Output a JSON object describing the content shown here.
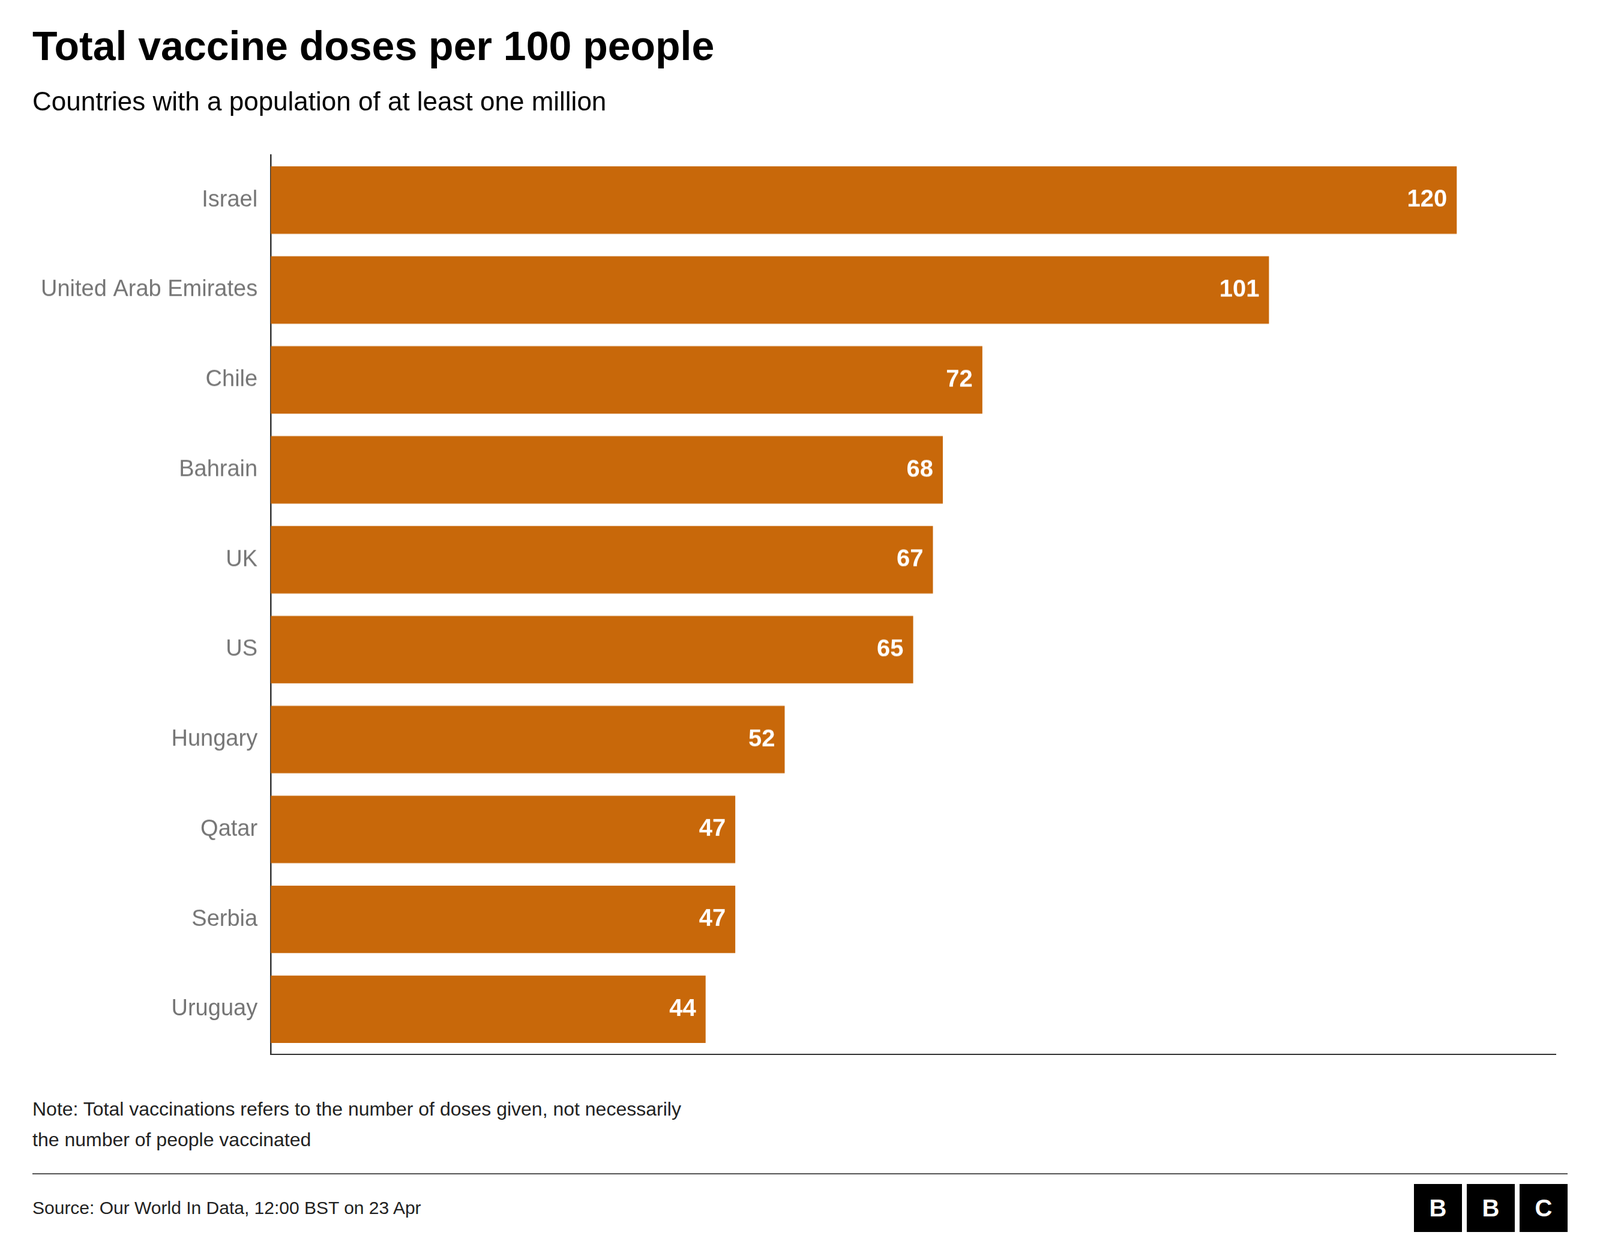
{
  "chart_data": {
    "type": "bar",
    "orientation": "horizontal",
    "title": "Total vaccine doses per 100 people",
    "subtitle": "Countries with a population of at least one million",
    "note": "Note: Total vaccinations refers to the number of doses given, not necessarily\nthe number of people vaccinated",
    "source": "Source: Our World In Data, 12:00 BST on 23 Apr",
    "logo": [
      "B",
      "B",
      "C"
    ],
    "categories": [
      "Israel",
      "United Arab Emirates",
      "Chile",
      "Bahrain",
      "UK",
      "US",
      "Hungary",
      "Qatar",
      "Serbia",
      "Uruguay"
    ],
    "values": [
      120,
      101,
      72,
      68,
      67,
      65,
      52,
      47,
      47,
      44
    ],
    "color": "#c8680a",
    "xlim": [
      0,
      130
    ],
    "grid": false,
    "data_labels": true,
    "tick_labels": "y"
  }
}
